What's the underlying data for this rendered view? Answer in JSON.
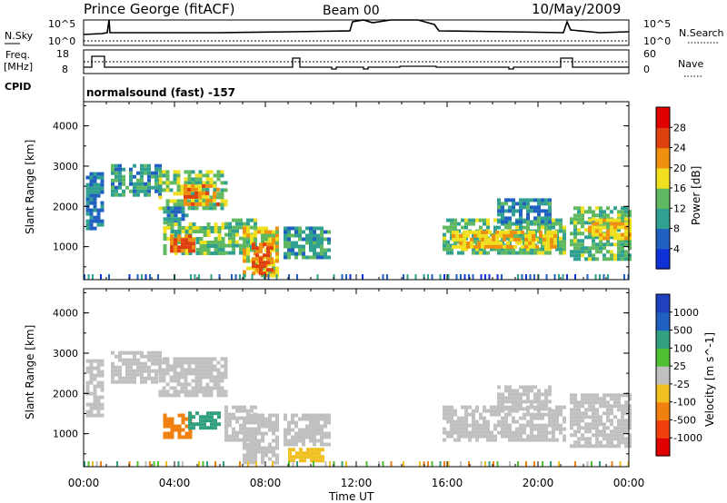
{
  "header": {
    "station": "Prince George (fitACF)",
    "beam": "Beam 00",
    "date": "10/May/2009"
  },
  "top_panels": {
    "nsky_label": "N.Sky",
    "nsearch_label": "N.Search",
    "noise_top_tick": "10^5",
    "noise_bottom_tick": "10^0",
    "freq_label_1": "Freq.",
    "freq_label_2": "[MHz]",
    "freq_ticks": [
      "18",
      "8"
    ],
    "nave_label": "Nave",
    "nave_ticks": [
      "60",
      "0"
    ],
    "cpid_label": "CPID",
    "cpid_value": "normalsound (fast) -157"
  },
  "chart_data": [
    {
      "type": "heatmap",
      "name": "power",
      "ylabel": "Slant Range [km]",
      "xlabel": "Time UT",
      "x_ticks": [
        "00:00",
        "04:00",
        "08:00",
        "12:00",
        "16:00",
        "20:00",
        "00:00"
      ],
      "y_ticks": [
        "1000",
        "2000",
        "3000",
        "4000"
      ],
      "ylim": [
        180,
        4600
      ],
      "colorbar_label": "Power [dB]",
      "colorbar_ticks": [
        "4",
        "8",
        "12",
        "16",
        "20",
        "24",
        "28"
      ],
      "colorbar_colors": [
        "#1030d8",
        "#2060c0",
        "#30a090",
        "#60b860",
        "#f0e020",
        "#f09010",
        "#e04010",
        "#e00000"
      ],
      "regions": [
        {
          "t0": 0.1,
          "t1": 0.8,
          "r0": 1450,
          "r1": 2850,
          "level": 8
        },
        {
          "t0": 1.2,
          "t1": 3.3,
          "r0": 2300,
          "r1": 3050,
          "level": 10
        },
        {
          "t0": 3.3,
          "t1": 6.3,
          "r0": 1950,
          "r1": 2900,
          "level": 14
        },
        {
          "t0": 4.4,
          "t1": 6.0,
          "r0": 2050,
          "r1": 2550,
          "level": 22
        },
        {
          "t0": 3.5,
          "t1": 4.5,
          "r0": 1550,
          "r1": 2000,
          "level": 9
        },
        {
          "t0": 3.5,
          "t1": 6.2,
          "r0": 800,
          "r1": 1600,
          "level": 14
        },
        {
          "t0": 3.8,
          "t1": 4.9,
          "r0": 900,
          "r1": 1300,
          "level": 24
        },
        {
          "t0": 6.2,
          "t1": 7.6,
          "r0": 800,
          "r1": 1700,
          "level": 13
        },
        {
          "t0": 7.0,
          "t1": 8.6,
          "r0": 300,
          "r1": 1500,
          "level": 18
        },
        {
          "t0": 7.4,
          "t1": 8.3,
          "r0": 300,
          "r1": 1100,
          "level": 24
        },
        {
          "t0": 8.8,
          "t1": 10.8,
          "r0": 700,
          "r1": 1500,
          "level": 10
        },
        {
          "t0": 15.8,
          "t1": 21.2,
          "r0": 800,
          "r1": 1700,
          "level": 13
        },
        {
          "t0": 16.2,
          "t1": 20.8,
          "r0": 1000,
          "r1": 1400,
          "level": 20
        },
        {
          "t0": 18.2,
          "t1": 20.5,
          "r0": 1650,
          "r1": 2200,
          "level": 9
        },
        {
          "t0": 21.4,
          "t1": 24.0,
          "r0": 700,
          "r1": 2000,
          "level": 13
        },
        {
          "t0": 22.2,
          "t1": 24.0,
          "r0": 1200,
          "r1": 1700,
          "level": 19
        }
      ]
    },
    {
      "type": "heatmap",
      "name": "velocity",
      "ylabel": "Slant Range [km]",
      "xlabel": "Time UT",
      "x_ticks": [
        "00:00",
        "04:00",
        "08:00",
        "12:00",
        "16:00",
        "20:00",
        "00:00"
      ],
      "y_ticks": [
        "1000",
        "2000",
        "3000",
        "4000"
      ],
      "ylim": [
        180,
        4600
      ],
      "colorbar_label": "Velocity [m s^-1]",
      "colorbar_ticks": [
        "1000",
        "500",
        "100",
        "25",
        "-25",
        "-100",
        "-500",
        "-1000"
      ],
      "colorbar_colors": [
        "#2040c0",
        "#2060c0",
        "#30a080",
        "#50c030",
        "#c0c0c0",
        "#f0c020",
        "#f08010",
        "#f04010",
        "#e00000"
      ],
      "regions": [
        {
          "t0": 0.1,
          "t1": 0.8,
          "r0": 1450,
          "r1": 2850,
          "level": 0
        },
        {
          "t0": 1.2,
          "t1": 3.3,
          "r0": 2300,
          "r1": 3050,
          "level": 0
        },
        {
          "t0": 3.3,
          "t1": 6.3,
          "r0": 1950,
          "r1": 2900,
          "level": 0
        },
        {
          "t0": 3.5,
          "t1": 4.7,
          "r0": 900,
          "r1": 1500,
          "level": -250
        },
        {
          "t0": 4.6,
          "t1": 5.9,
          "r0": 1150,
          "r1": 1550,
          "level": 200
        },
        {
          "t0": 6.2,
          "t1": 7.6,
          "r0": 800,
          "r1": 1700,
          "level": 0
        },
        {
          "t0": 7.0,
          "t1": 8.6,
          "r0": 300,
          "r1": 1500,
          "level": 0
        },
        {
          "t0": 9.0,
          "t1": 10.6,
          "r0": 350,
          "r1": 650,
          "level": -60
        },
        {
          "t0": 8.8,
          "t1": 10.8,
          "r0": 700,
          "r1": 1500,
          "level": 0
        },
        {
          "t0": 15.8,
          "t1": 21.2,
          "r0": 800,
          "r1": 1700,
          "level": 0
        },
        {
          "t0": 18.2,
          "t1": 20.5,
          "r0": 1650,
          "r1": 2200,
          "level": 0
        },
        {
          "t0": 21.4,
          "t1": 24.0,
          "r0": 700,
          "r1": 2000,
          "level": 0
        }
      ]
    }
  ]
}
